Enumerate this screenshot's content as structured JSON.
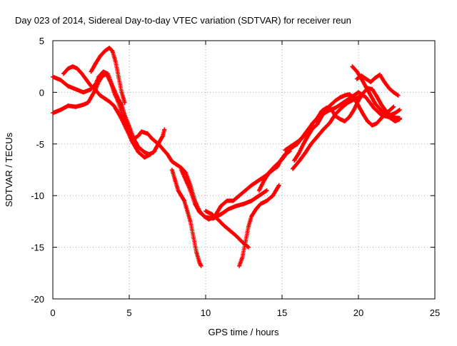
{
  "chart_data": {
    "type": "scatter",
    "title": "Day 023 of 2014, Sidereal Day-to-day VTEC variation (SDTVAR) for receiver reun",
    "xlabel": "GPS time / hours",
    "ylabel": "SDTVAR / TECUs",
    "xlim": [
      0,
      25
    ],
    "ylim": [
      -20,
      5
    ],
    "xticks": [
      0,
      5,
      10,
      15,
      20,
      25
    ],
    "yticks": [
      -20,
      -15,
      -10,
      -5,
      0,
      5
    ],
    "grid": true,
    "marker": "+",
    "color": "#ff0000",
    "series": [
      {
        "points": [
          [
            0.0,
            1.5
          ],
          [
            0.5,
            1.2
          ],
          [
            1.0,
            0.6
          ],
          [
            1.5,
            0.3
          ],
          [
            2.0,
            0.0
          ],
          [
            2.5,
            0.3
          ],
          [
            2.8,
            0.8
          ],
          [
            3.0,
            1.5
          ],
          [
            3.3,
            2.0
          ],
          [
            3.6,
            1.8
          ],
          [
            3.8,
            1.0
          ],
          [
            4.0,
            0.0
          ],
          [
            4.3,
            -1.0
          ],
          [
            4.6,
            -2.5
          ],
          [
            5.0,
            -3.8
          ],
          [
            5.3,
            -4.5
          ],
          [
            5.6,
            -4.2
          ],
          [
            5.8,
            -3.8
          ],
          [
            6.2,
            -4.0
          ],
          [
            6.5,
            -4.5
          ],
          [
            6.9,
            -5.0
          ],
          [
            7.2,
            -5.5
          ],
          [
            7.5,
            -6.0
          ],
          [
            7.8,
            -6.7
          ],
          [
            8.1,
            -7.0
          ],
          [
            8.4,
            -7.3
          ],
          [
            8.7,
            -7.8
          ],
          [
            9.0,
            -9.0
          ],
          [
            9.3,
            -10.5
          ],
          [
            9.6,
            -11.5
          ],
          [
            9.9,
            -12.0
          ],
          [
            10.2,
            -12.3
          ],
          [
            10.6,
            -12.0
          ],
          [
            11.0,
            -11.0
          ],
          [
            11.4,
            -10.5
          ],
          [
            11.8,
            -10.5
          ],
          [
            12.2,
            -10.0
          ],
          [
            12.6,
            -9.5
          ],
          [
            13.0,
            -9.0
          ],
          [
            13.5,
            -8.5
          ],
          [
            14.0,
            -8.0
          ],
          [
            14.5,
            -7.2
          ],
          [
            15.0,
            -6.5
          ],
          [
            15.5,
            -5.5
          ],
          [
            16.0,
            -5.0
          ],
          [
            16.5,
            -4.0
          ],
          [
            17.0,
            -3.0
          ],
          [
            17.5,
            -2.3
          ],
          [
            18.0,
            -1.8
          ],
          [
            18.5,
            -1.5
          ],
          [
            19.0,
            -1.0
          ],
          [
            19.5,
            -0.5
          ],
          [
            20.0,
            0.0
          ],
          [
            20.5,
            -0.5
          ],
          [
            21.0,
            -1.5
          ],
          [
            21.5,
            -2.2
          ],
          [
            22.0,
            -2.4
          ],
          [
            22.7,
            -2.5
          ]
        ]
      },
      {
        "points": [
          [
            0.0,
            -2.0
          ],
          [
            0.5,
            -1.7
          ],
          [
            1.0,
            -1.3
          ],
          [
            1.5,
            -1.4
          ],
          [
            2.0,
            -1.2
          ],
          [
            2.3,
            -1.0
          ],
          [
            2.5,
            -0.5
          ],
          [
            2.8,
            0.3
          ],
          [
            3.0,
            1.0
          ],
          [
            3.2,
            1.5
          ],
          [
            3.5,
            1.8
          ],
          [
            3.7,
            1.2
          ],
          [
            4.0,
            0.3
          ],
          [
            4.3,
            -0.7
          ],
          [
            4.5,
            -1.2
          ],
          [
            4.7,
            -2.2
          ],
          [
            5.0,
            -3.3
          ],
          [
            5.3,
            -4.5
          ],
          [
            5.6,
            -5.3
          ],
          [
            6.0,
            -5.8
          ],
          [
            6.3,
            -6.0
          ],
          [
            6.6,
            -5.8
          ],
          [
            6.9,
            -5.0
          ],
          [
            7.2,
            -4.2
          ],
          [
            7.3,
            -3.6
          ]
        ]
      },
      {
        "points": [
          [
            0.7,
            1.8
          ],
          [
            1.0,
            2.3
          ],
          [
            1.3,
            2.5
          ],
          [
            1.6,
            2.3
          ],
          [
            1.9,
            1.8
          ],
          [
            2.2,
            1.2
          ],
          [
            2.5,
            0.6
          ],
          [
            2.8,
            0.2
          ],
          [
            3.1,
            -0.3
          ],
          [
            3.4,
            -0.6
          ],
          [
            3.7,
            -0.9
          ],
          [
            4.0,
            -1.3
          ],
          [
            4.4,
            -2.3
          ],
          [
            4.8,
            -3.5
          ],
          [
            5.2,
            -4.8
          ],
          [
            5.6,
            -5.8
          ],
          [
            6.0,
            -6.3
          ],
          [
            6.4,
            -6.0
          ]
        ]
      },
      {
        "points": [
          [
            2.5,
            2.0
          ],
          [
            2.8,
            2.8
          ],
          [
            3.1,
            3.5
          ],
          [
            3.4,
            4.0
          ],
          [
            3.7,
            4.3
          ],
          [
            3.9,
            4.0
          ],
          [
            4.1,
            3.0
          ],
          [
            4.3,
            1.5
          ],
          [
            4.5,
            0.0
          ],
          [
            4.7,
            -1.0
          ]
        ]
      },
      {
        "points": [
          [
            7.8,
            -7.5
          ],
          [
            8.0,
            -8.5
          ],
          [
            8.2,
            -9.5
          ],
          [
            8.4,
            -10.0
          ],
          [
            8.6,
            -10.5
          ],
          [
            8.8,
            -11.5
          ],
          [
            9.0,
            -12.5
          ],
          [
            9.2,
            -14.0
          ],
          [
            9.4,
            -15.5
          ],
          [
            9.6,
            -16.5
          ],
          [
            9.7,
            -16.8
          ]
        ]
      },
      {
        "points": [
          [
            8.4,
            -7.5
          ],
          [
            8.7,
            -8.5
          ],
          [
            9.0,
            -9.5
          ],
          [
            9.3,
            -10.8
          ],
          [
            9.6,
            -11.6
          ],
          [
            10.0,
            -12.1
          ],
          [
            10.5,
            -12.2
          ],
          [
            11.0,
            -11.8
          ],
          [
            11.5,
            -11.3
          ],
          [
            12.0,
            -11.0
          ],
          [
            12.5,
            -10.8
          ],
          [
            13.0,
            -10.5
          ],
          [
            13.5,
            -10.0
          ],
          [
            14.0,
            -9.5
          ]
        ]
      },
      {
        "points": [
          [
            10.0,
            -11.5
          ],
          [
            10.4,
            -11.8
          ],
          [
            10.8,
            -12.3
          ],
          [
            11.2,
            -12.9
          ],
          [
            11.6,
            -13.4
          ],
          [
            12.0,
            -13.9
          ],
          [
            12.4,
            -14.5
          ],
          [
            12.8,
            -15.0
          ]
        ]
      },
      {
        "points": [
          [
            12.2,
            -16.8
          ],
          [
            12.4,
            -16.0
          ],
          [
            12.6,
            -14.5
          ],
          [
            12.8,
            -13.0
          ],
          [
            13.0,
            -12.0
          ],
          [
            13.3,
            -11.3
          ],
          [
            13.6,
            -10.8
          ],
          [
            14.0,
            -10.5
          ],
          [
            14.4,
            -10.0
          ],
          [
            14.8,
            -9.0
          ]
        ]
      },
      {
        "points": [
          [
            13.5,
            -9.5
          ],
          [
            13.8,
            -8.6
          ],
          [
            14.1,
            -7.9
          ],
          [
            14.4,
            -7.5
          ],
          [
            14.7,
            -7.2
          ],
          [
            14.9,
            -6.6
          ],
          [
            15.2,
            -6.0
          ],
          [
            15.5,
            -5.7
          ]
        ]
      },
      {
        "points": [
          [
            15.2,
            -5.6
          ],
          [
            15.6,
            -5.2
          ],
          [
            16.0,
            -4.8
          ],
          [
            16.4,
            -4.3
          ],
          [
            16.8,
            -3.5
          ],
          [
            17.0,
            -3.0
          ],
          [
            17.3,
            -2.5
          ],
          [
            17.6,
            -1.8
          ],
          [
            17.9,
            -1.5
          ],
          [
            18.2,
            -1.6
          ],
          [
            18.5,
            -2.3
          ],
          [
            18.8,
            -2.6
          ],
          [
            19.1,
            -2.8
          ],
          [
            19.4,
            -2.4
          ],
          [
            19.7,
            -1.7
          ],
          [
            20.0,
            -0.8
          ],
          [
            20.3,
            -0.1
          ],
          [
            20.6,
            0.4
          ],
          [
            20.9,
            0.3
          ],
          [
            21.2,
            -0.4
          ],
          [
            21.5,
            -1.2
          ],
          [
            21.8,
            -1.8
          ],
          [
            22.1,
            -2.2
          ],
          [
            22.4,
            -2.0
          ],
          [
            22.7,
            -1.7
          ]
        ]
      },
      {
        "points": [
          [
            15.8,
            -6.6
          ],
          [
            16.1,
            -5.9
          ],
          [
            16.4,
            -5.0
          ],
          [
            16.7,
            -4.2
          ],
          [
            17.0,
            -3.5
          ],
          [
            17.3,
            -3.1
          ],
          [
            17.6,
            -2.3
          ],
          [
            17.9,
            -1.6
          ],
          [
            18.2,
            -1.2
          ],
          [
            18.5,
            -0.8
          ],
          [
            18.8,
            -0.5
          ],
          [
            19.1,
            -0.3
          ],
          [
            19.4,
            -0.2
          ],
          [
            19.7,
            -0.5
          ],
          [
            20.0,
            -1.3
          ],
          [
            20.3,
            -2.1
          ],
          [
            20.6,
            -2.8
          ],
          [
            20.9,
            -3.2
          ],
          [
            21.2,
            -3.0
          ],
          [
            21.5,
            -2.5
          ],
          [
            21.8,
            -2.0
          ],
          [
            22.1,
            -2.5
          ],
          [
            22.4,
            -2.8
          ],
          [
            22.7,
            -2.6
          ]
        ]
      },
      {
        "points": [
          [
            15.7,
            -7.4
          ],
          [
            16.1,
            -6.7
          ],
          [
            16.5,
            -5.9
          ],
          [
            16.9,
            -5.0
          ],
          [
            17.3,
            -4.3
          ],
          [
            17.7,
            -3.6
          ],
          [
            18.1,
            -3.0
          ],
          [
            18.5,
            -2.1
          ],
          [
            18.9,
            -1.5
          ],
          [
            19.3,
            -1.0
          ],
          [
            19.7,
            -0.7
          ],
          [
            20.1,
            -0.4
          ]
        ]
      },
      {
        "points": [
          [
            19.6,
            2.5
          ],
          [
            19.9,
            2.0
          ],
          [
            20.2,
            1.3
          ],
          [
            20.5,
            0.5
          ],
          [
            20.8,
            -0.3
          ],
          [
            21.1,
            -1.1
          ],
          [
            21.4,
            -1.6
          ],
          [
            21.7,
            -2.1
          ],
          [
            22.0,
            -1.8
          ],
          [
            22.3,
            -1.4
          ]
        ]
      },
      {
        "points": [
          [
            19.9,
            1.3
          ],
          [
            20.2,
            1.6
          ],
          [
            20.5,
            1.3
          ],
          [
            20.8,
            1.0
          ],
          [
            21.1,
            1.4
          ],
          [
            21.4,
            1.7
          ],
          [
            21.7,
            1.0
          ],
          [
            22.0,
            0.4
          ],
          [
            22.3,
            0.0
          ],
          [
            22.6,
            -0.3
          ]
        ]
      }
    ]
  }
}
